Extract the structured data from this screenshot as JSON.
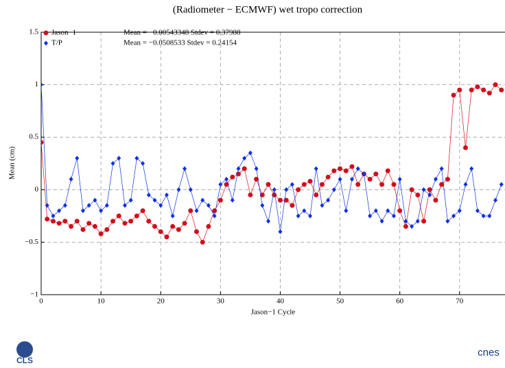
{
  "chart_data": {
    "type": "line",
    "title": "(Radiometer − ECMWF) wet tropo correction",
    "xlabel": "Jason−1 Cycle",
    "ylabel": "Mean (cm)",
    "annotations": [
      "Mean = −0.00543348 Stdev = 0.37988",
      "Mean = −0.0508533   Stdev = 0.24154"
    ],
    "x": [
      0,
      1,
      2,
      3,
      4,
      5,
      6,
      7,
      8,
      9,
      10,
      11,
      12,
      13,
      14,
      15,
      16,
      17,
      18,
      19,
      20,
      21,
      22,
      23,
      24,
      25,
      26,
      27,
      28,
      29,
      30,
      31,
      32,
      33,
      34,
      35,
      36,
      37,
      38,
      39,
      40,
      41,
      42,
      43,
      44,
      45,
      46,
      47,
      48,
      49,
      50,
      51,
      52,
      53,
      54,
      55,
      56,
      57,
      58,
      59,
      60,
      61,
      62,
      63,
      64,
      65,
      66,
      67,
      68,
      69,
      70,
      71,
      72,
      73,
      74,
      75,
      76,
      77
    ],
    "series": [
      {
        "name": "Jason−1",
        "color": "#d0101c",
        "marker": "circle",
        "values": [
          0.45,
          -0.28,
          -0.3,
          -0.32,
          -0.3,
          -0.35,
          -0.3,
          -0.38,
          -0.32,
          -0.35,
          -0.42,
          -0.38,
          -0.3,
          -0.25,
          -0.32,
          -0.3,
          -0.25,
          -0.2,
          -0.3,
          -0.35,
          -0.4,
          -0.45,
          -0.35,
          -0.38,
          -0.32,
          -0.2,
          -0.4,
          -0.5,
          -0.35,
          -0.2,
          -0.1,
          0.05,
          0.12,
          0.15,
          0.2,
          -0.05,
          0.1,
          -0.05,
          0.05,
          -0.05,
          -0.1,
          -0.1,
          -0.15,
          0.0,
          0.05,
          0.08,
          -0.05,
          0.05,
          0.12,
          0.18,
          0.2,
          0.18,
          0.22,
          0.05,
          0.15,
          0.1,
          0.15,
          0.05,
          0.18,
          0.05,
          -0.2,
          -0.35,
          0.0,
          -0.05,
          -0.3,
          0.0,
          -0.1,
          0.05,
          0.1,
          0.9,
          0.95,
          0.4,
          0.95,
          0.98,
          0.95,
          0.92,
          1.0,
          0.95
        ]
      },
      {
        "name": "T/P",
        "color": "#1030e0",
        "marker": "diamond",
        "values": [
          1.0,
          -0.15,
          -0.25,
          -0.2,
          -0.15,
          0.1,
          0.3,
          -0.2,
          -0.15,
          -0.1,
          -0.2,
          -0.15,
          0.25,
          0.3,
          -0.15,
          -0.1,
          0.3,
          0.25,
          -0.05,
          -0.1,
          -0.15,
          -0.05,
          -0.25,
          0.0,
          0.2,
          0.0,
          -0.2,
          -0.1,
          -0.15,
          -0.25,
          0.05,
          0.1,
          -0.1,
          0.2,
          0.3,
          0.35,
          0.2,
          -0.15,
          -0.3,
          0.0,
          -0.4,
          0.0,
          0.05,
          -0.25,
          -0.2,
          -0.25,
          0.2,
          -0.15,
          -0.1,
          0.0,
          0.1,
          -0.2,
          0.1,
          0.2,
          0.15,
          -0.25,
          -0.2,
          -0.3,
          -0.2,
          -0.25,
          0.1,
          -0.3,
          -0.35,
          -0.3,
          0.0,
          -0.05,
          0.1,
          0.2,
          -0.3,
          -0.25,
          -0.2,
          0.05,
          0.2,
          -0.2,
          -0.25,
          -0.25,
          -0.1,
          0.05
        ]
      }
    ],
    "xlim": [
      0,
      77.6
    ],
    "ylim": [
      -1,
      1.5
    ],
    "xticks": [
      0,
      10,
      20,
      30,
      40,
      50,
      60,
      70
    ],
    "yticks": [
      {
        "value": -1,
        "label": "−1"
      },
      {
        "value": -0.5,
        "label": "−0.5"
      },
      0,
      0.5,
      1,
      1.5
    ],
    "grid": true
  },
  "logos": [
    "CLS",
    "cnes"
  ]
}
